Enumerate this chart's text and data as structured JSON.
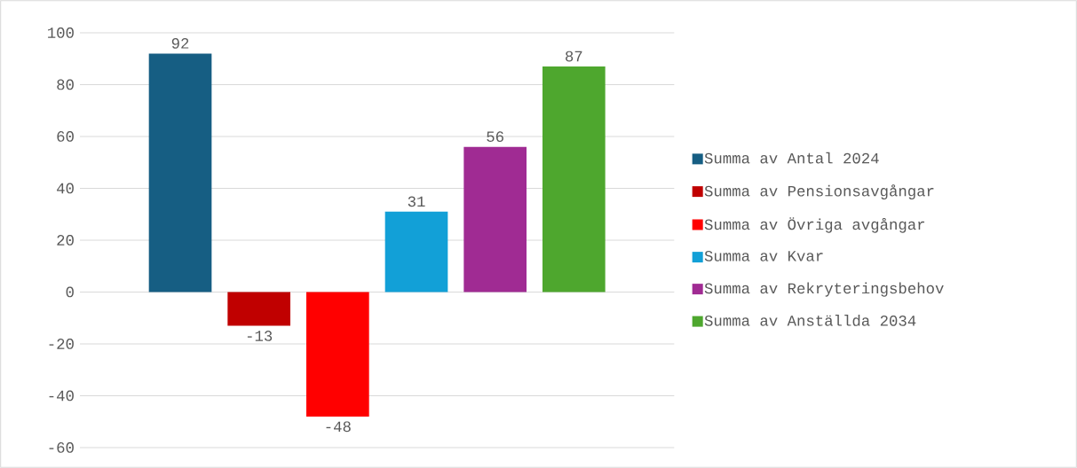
{
  "chart_data": {
    "type": "bar",
    "categories": [
      null
    ],
    "series": [
      {
        "name": "Summa av Antal 2024",
        "color": "#165e83",
        "values": [
          92
        ]
      },
      {
        "name": "Summa av Pensionsavgångar",
        "color": "#c00000",
        "values": [
          -13
        ]
      },
      {
        "name": "Summa av Övriga avgångar",
        "color": "#ff0000",
        "values": [
          -48
        ]
      },
      {
        "name": "Summa av Kvar",
        "color": "#12a0d7",
        "values": [
          31
        ]
      },
      {
        "name": "Summa av Rekryteringsbehov",
        "color": "#a02b93",
        "values": [
          56
        ]
      },
      {
        "name": "Summa av Anställda 2034",
        "color": "#4ea72e",
        "values": [
          87
        ]
      }
    ],
    "ylim": [
      -60,
      100
    ],
    "yticks": [
      -60,
      -40,
      -20,
      0,
      20,
      40,
      60,
      80,
      100
    ],
    "grid": "y",
    "legend": "right",
    "data_labels": true
  }
}
